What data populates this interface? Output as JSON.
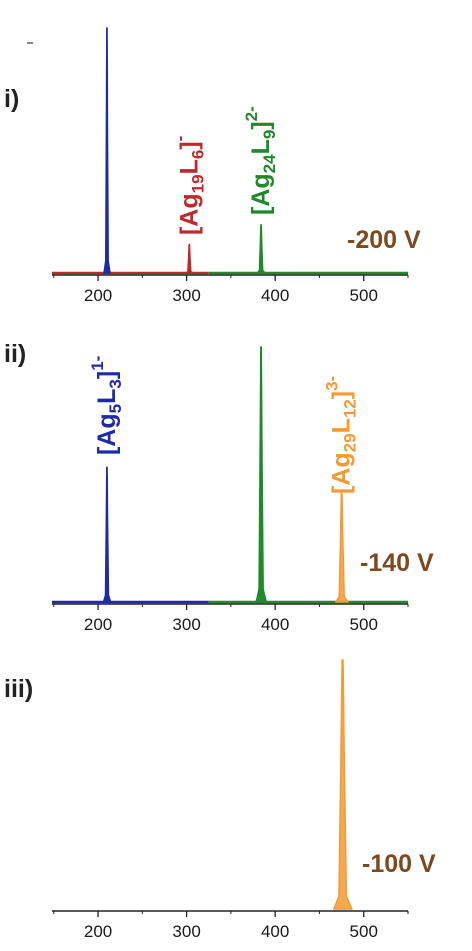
{
  "chart_data": [
    {
      "type": "line",
      "panel_label": "i)",
      "voltage": "-200 V",
      "xlim": [
        148,
        550
      ],
      "ticks": [
        200,
        300,
        400,
        500
      ],
      "tick_labels": [
        "200",
        "300",
        "400",
        "500"
      ],
      "series": [
        {
          "color": "#1f2aa6",
          "peaks": [
            {
              "x": 210,
              "y": 1.0,
              "width": 1.5
            }
          ]
        },
        {
          "color": "#c0282d",
          "peaks": [
            {
              "x": 303,
              "y": 0.12,
              "width": 1.8
            }
          ]
        },
        {
          "color": "#1e8a2a",
          "peaks": [
            {
              "x": 384,
              "y": 0.2,
              "width": 2.0
            }
          ]
        }
      ],
      "baselines": [
        {
          "color": "#c0282d",
          "from": 148,
          "to": 325
        },
        {
          "color": "#1e8a2a",
          "from": 325,
          "to": 550
        }
      ],
      "annotations": [
        {
          "color": "#c0282d",
          "x": 303,
          "parts": [
            {
              "t": "[Ag"
            },
            {
              "t": "19",
              "k": "sub"
            },
            {
              "t": "L"
            },
            {
              "t": "6",
              "k": "sub"
            },
            {
              "t": "]"
            },
            {
              "t": "-",
              "k": "sup"
            }
          ]
        },
        {
          "color": "#1e8a2a",
          "x": 384,
          "parts": [
            {
              "t": "[Ag"
            },
            {
              "t": "24",
              "k": "sub"
            },
            {
              "t": "L"
            },
            {
              "t": "9",
              "k": "sub"
            },
            {
              "t": "]"
            },
            {
              "t": "2-",
              "k": "sup"
            }
          ]
        }
      ]
    },
    {
      "type": "line",
      "panel_label": "ii)",
      "voltage": "-140 V",
      "xlim": [
        148,
        550
      ],
      "ticks": [
        200,
        300,
        400,
        500
      ],
      "tick_labels": [
        "200",
        "300",
        "400",
        "500"
      ],
      "series": [
        {
          "color": "#1f2aa6",
          "peaks": [
            {
              "x": 210,
              "y": 0.53,
              "width": 1.8
            }
          ]
        },
        {
          "color": "#1e8a2a",
          "peaks": [
            {
              "x": 384,
              "y": 1.0,
              "width": 2.5
            }
          ]
        },
        {
          "color": "#f29a33",
          "peaks": [
            {
              "x": 475,
              "y": 0.43,
              "width": 3.0
            }
          ]
        }
      ],
      "baselines": [
        {
          "color": "#1f2aa6",
          "from": 148,
          "to": 325
        },
        {
          "color": "#1e8a2a",
          "from": 325,
          "to": 550
        }
      ],
      "annotations": [
        {
          "color": "#1f2aa6",
          "x": 210,
          "parts": [
            {
              "t": "[Ag"
            },
            {
              "t": "5",
              "k": "sub"
            },
            {
              "t": "L"
            },
            {
              "t": "3",
              "k": "sub"
            },
            {
              "t": "]"
            },
            {
              "t": "1-",
              "k": "sup"
            }
          ]
        },
        {
          "color": "#f29a33",
          "x": 475,
          "parts": [
            {
              "t": "[Ag"
            },
            {
              "t": "29",
              "k": "sub"
            },
            {
              "t": "L"
            },
            {
              "t": "12",
              "k": "sub"
            },
            {
              "t": "]"
            },
            {
              "t": "3-",
              "k": "sup"
            }
          ]
        }
      ]
    },
    {
      "type": "area",
      "panel_label": "iii)",
      "voltage": "-100 V",
      "xlim": [
        148,
        550
      ],
      "ticks": [
        200,
        300,
        400,
        500
      ],
      "tick_labels": [
        "200",
        "300",
        "400",
        "500"
      ],
      "series": [
        {
          "color": "#f29a33",
          "peaks": [
            {
              "x": 476,
              "y": 1.0,
              "width": 4.5
            }
          ]
        }
      ],
      "baselines": [],
      "annotations": []
    }
  ]
}
